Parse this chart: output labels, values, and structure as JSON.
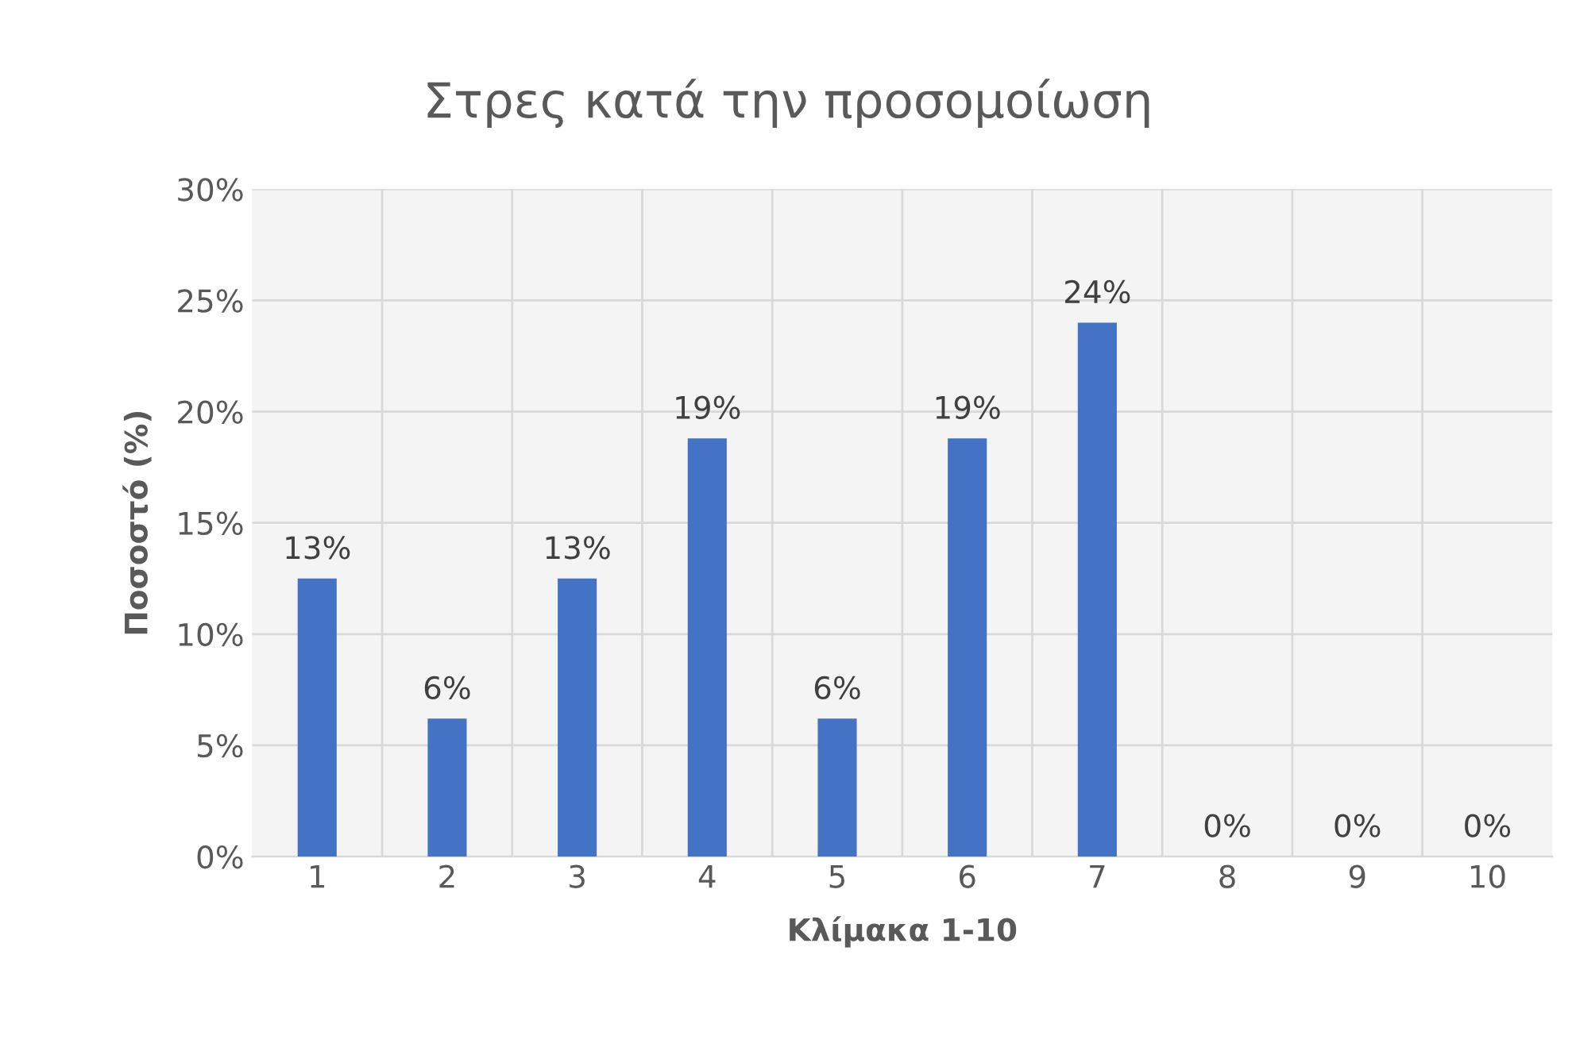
{
  "chart_data": {
    "type": "bar",
    "title": "Στρες κατά την προσομοίωση",
    "xlabel": "Κλίμακα 1-10",
    "ylabel": "Ποσοστό (%)",
    "categories": [
      "1",
      "2",
      "3",
      "4",
      "5",
      "6",
      "7",
      "8",
      "9",
      "10"
    ],
    "values": [
      12.5,
      6.2,
      12.5,
      18.8,
      6.2,
      18.8,
      24,
      0,
      0,
      0
    ],
    "value_labels": [
      "13%",
      "6%",
      "13%",
      "19%",
      "6%",
      "19%",
      "24%",
      "0%",
      "0%",
      "0%"
    ],
    "color": "#4472c4",
    "ylim": [
      0,
      30
    ],
    "yticks": [
      {
        "value": 0,
        "label": "0%"
      },
      {
        "value": 5,
        "label": "5%"
      },
      {
        "value": 10,
        "label": "10%"
      },
      {
        "value": 15,
        "label": "15%"
      },
      {
        "value": 20,
        "label": "20%"
      },
      {
        "value": 25,
        "label": "25%"
      },
      {
        "value": 30,
        "label": "30%"
      }
    ],
    "grid": true,
    "legend": false
  }
}
